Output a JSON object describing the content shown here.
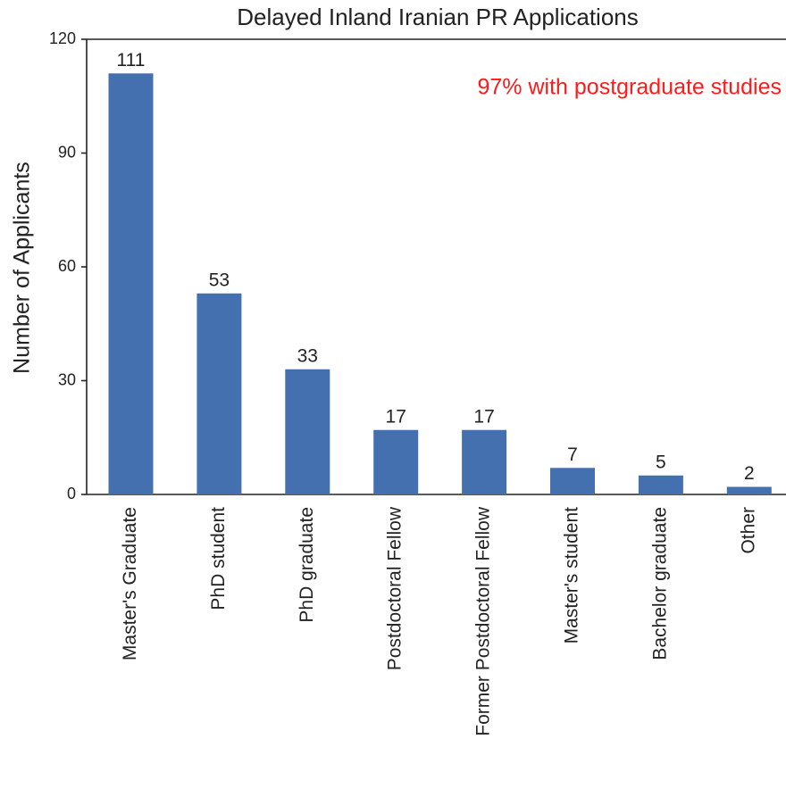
{
  "chart_data": {
    "type": "bar",
    "title": "Delayed Inland Iranian PR Applications",
    "ylabel": "Number of Applicants",
    "annotation": "97% with postgraduate studies",
    "categories": [
      "Master's Graduate",
      "PhD student",
      "PhD graduate",
      "Postdoctoral Fellow",
      "Former Postdoctoral Fellow",
      "Master's student",
      "Bachelor graduate",
      "Other"
    ],
    "values": [
      111,
      53,
      33,
      17,
      17,
      7,
      5,
      2
    ],
    "color": "#4570b0",
    "annotation_color": "#ff1a1a",
    "ylim": [
      0,
      120
    ],
    "yticks": [
      0,
      30,
      60,
      90,
      120
    ],
    "grid": false
  }
}
